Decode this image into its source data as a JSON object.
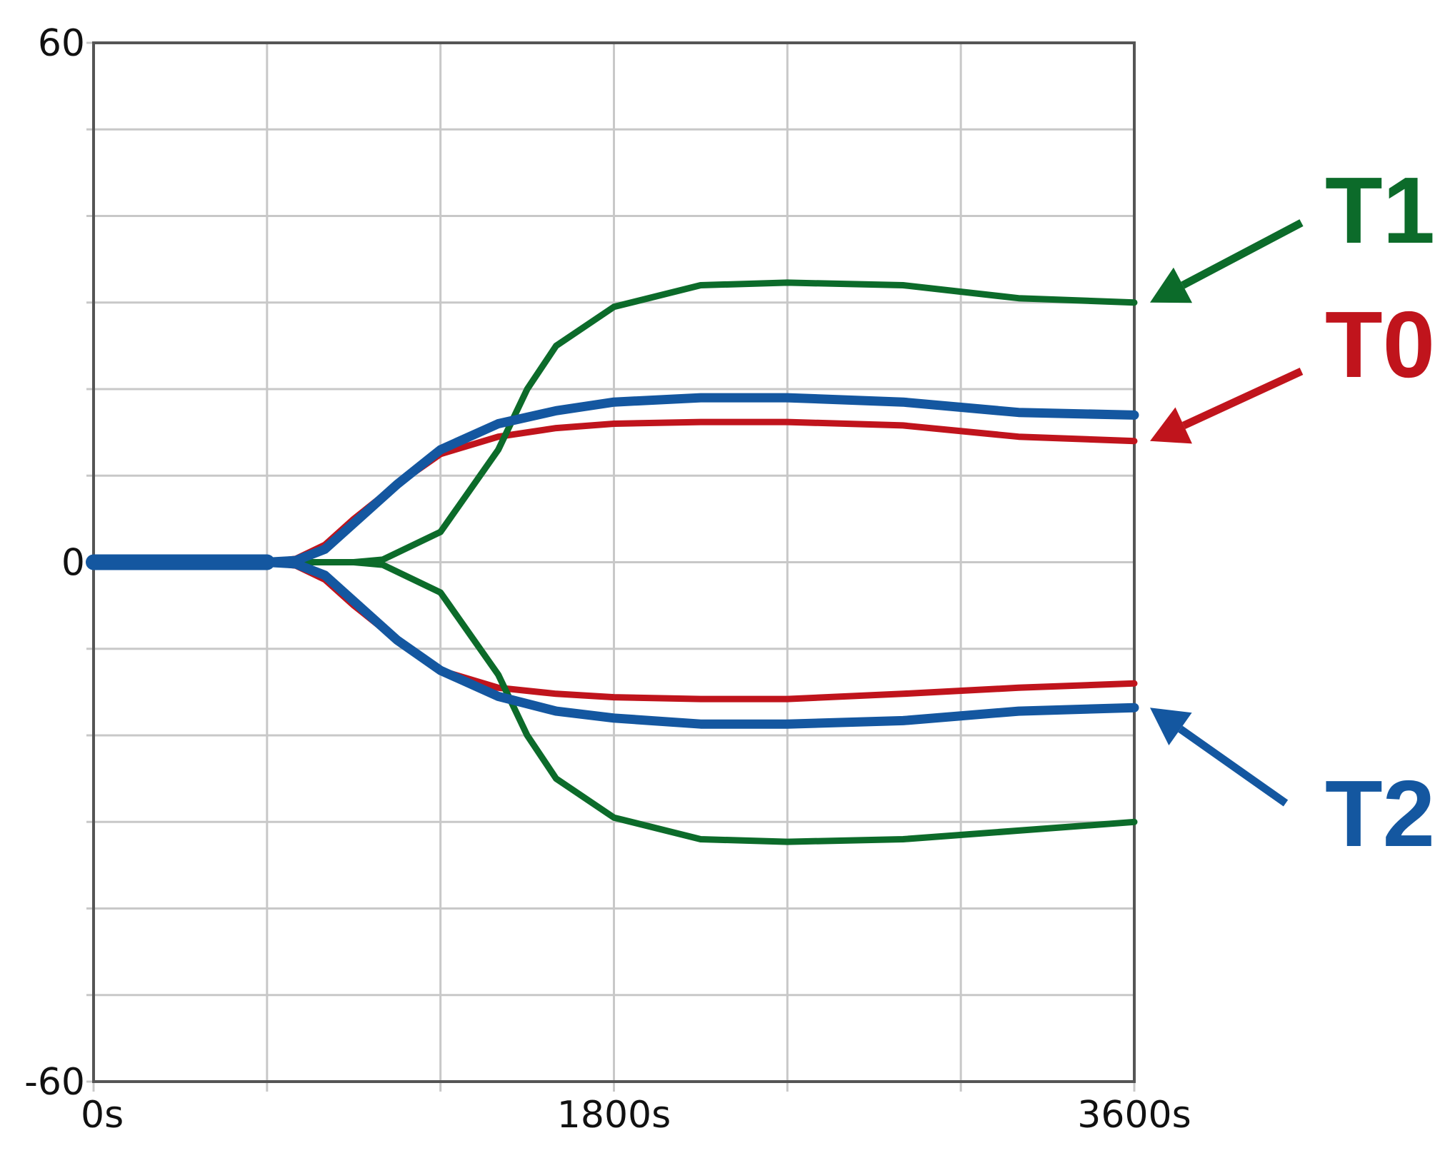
{
  "chart_data": {
    "type": "line",
    "title": "",
    "xlabel": "",
    "ylabel": "",
    "xlim": [
      0,
      3600
    ],
    "ylim": [
      -60,
      60
    ],
    "grid": true,
    "x_ticks": [
      {
        "value": 0,
        "label": "0s"
      },
      {
        "value": 1800,
        "label": "1800s"
      },
      {
        "value": 3600,
        "label": "3600s"
      }
    ],
    "y_ticks": [
      {
        "value": 60,
        "label": "60"
      },
      {
        "value": 0,
        "label": "0"
      },
      {
        "value": -60,
        "label": "-60"
      }
    ],
    "x_gridlines": [
      0,
      600,
      1200,
      1800,
      2400,
      3000,
      3600
    ],
    "y_gridlines": [
      -60,
      -50,
      -40,
      -30,
      -20,
      -10,
      0,
      10,
      20,
      30,
      40,
      50,
      60
    ],
    "legend": "right, arrow annotations",
    "series": [
      {
        "name": "T1",
        "color": "#0c6b2a",
        "upper": {
          "x": [
            0,
            600,
            900,
            1000,
            1200,
            1400,
            1500,
            1600,
            1800,
            2100,
            2400,
            2800,
            3200,
            3600
          ],
          "y": [
            0,
            0,
            0,
            0.3,
            3.5,
            13,
            20,
            25,
            29.5,
            32,
            32.3,
            32,
            30.5,
            30
          ]
        },
        "lower": {
          "x": [
            0,
            600,
            900,
            1000,
            1200,
            1400,
            1500,
            1600,
            1800,
            2100,
            2400,
            2800,
            3200,
            3600
          ],
          "y": [
            0,
            0,
            0,
            -0.3,
            -3.5,
            -13,
            -20,
            -25,
            -29.5,
            -32,
            -32.3,
            -32,
            -31,
            -30
          ]
        }
      },
      {
        "name": "T0",
        "color": "#c0141c",
        "upper": {
          "x": [
            0,
            600,
            700,
            800,
            900,
            1050,
            1200,
            1400,
            1600,
            1800,
            2100,
            2400,
            2800,
            3200,
            3600
          ],
          "y": [
            0,
            0,
            0.4,
            2,
            5,
            9,
            12.5,
            14.5,
            15.5,
            16,
            16.2,
            16.2,
            15.8,
            14.5,
            14
          ]
        },
        "lower": {
          "x": [
            0,
            600,
            700,
            800,
            900,
            1050,
            1200,
            1400,
            1600,
            1800,
            2100,
            2400,
            2800,
            3200,
            3600
          ],
          "y": [
            0,
            0,
            -0.4,
            -2,
            -5,
            -9,
            -12.5,
            -14.5,
            -15.2,
            -15.6,
            -15.8,
            -15.8,
            -15.2,
            -14.5,
            -14
          ]
        }
      },
      {
        "name": "T2",
        "color": "#1457a0",
        "upper": {
          "x": [
            0,
            600,
            700,
            800,
            900,
            1050,
            1200,
            1400,
            1600,
            1800,
            2100,
            2400,
            2800,
            3200,
            3600
          ],
          "y": [
            0,
            0,
            0.2,
            1.5,
            4.5,
            9,
            13,
            16,
            17.5,
            18.5,
            19,
            19,
            18.5,
            17.3,
            17
          ]
        },
        "lower": {
          "x": [
            0,
            600,
            700,
            800,
            900,
            1050,
            1200,
            1400,
            1600,
            1800,
            2100,
            2400,
            2800,
            3200,
            3600
          ],
          "y": [
            0,
            0,
            -0.2,
            -1.5,
            -4.5,
            -9,
            -12.5,
            -15.5,
            -17.2,
            -18,
            -18.7,
            -18.7,
            -18.3,
            -17.2,
            -16.8
          ]
        }
      }
    ]
  }
}
